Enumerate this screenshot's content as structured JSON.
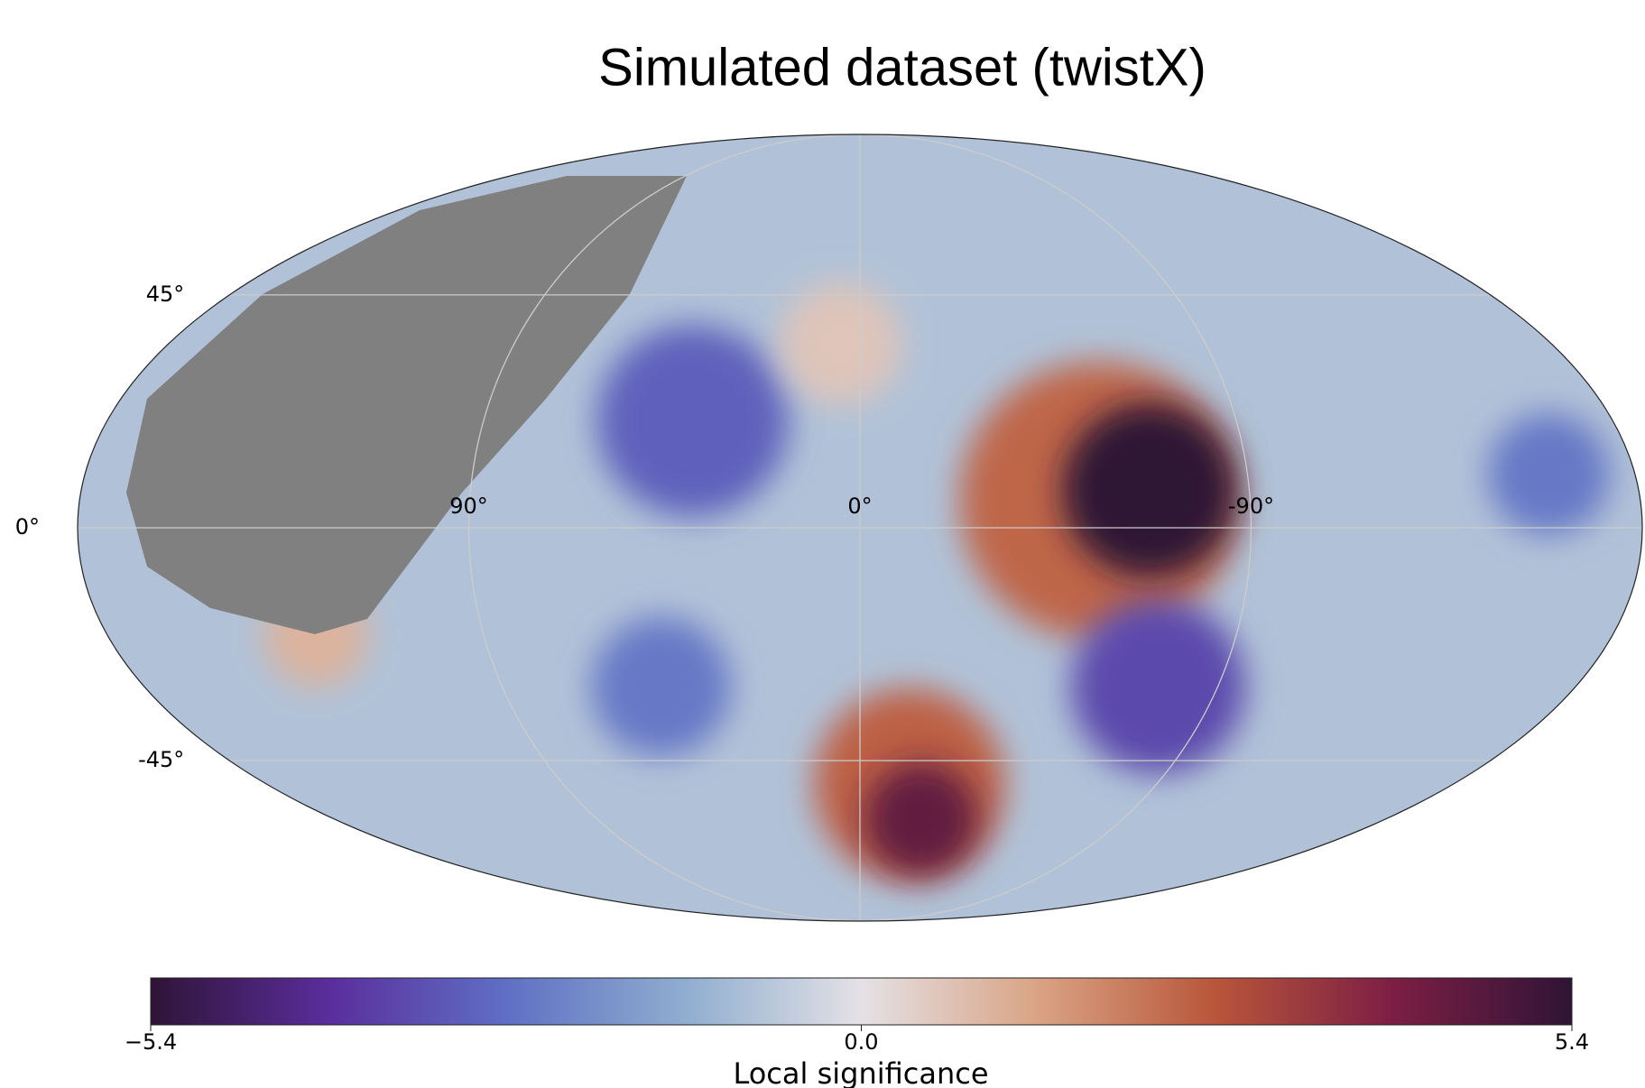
{
  "chart_data": {
    "type": "skymap",
    "title": "Simulated dataset (twistX)",
    "projection": "mollweide",
    "lon_direction": "east-left",
    "xticks": [
      {
        "value": 90,
        "label": "90°"
      },
      {
        "value": 0,
        "label": "0°"
      },
      {
        "value": -90,
        "label": "-90°"
      }
    ],
    "yticks": [
      {
        "value": 45,
        "label": "45°"
      },
      {
        "value": 0,
        "label": "0°"
      },
      {
        "value": -45,
        "label": "-45°"
      }
    ],
    "grid": true,
    "mask_color": "#808080",
    "background_value": -0.8,
    "blobs": [
      {
        "lon": -55,
        "lat": 5,
        "r": 32,
        "value": 2.4
      },
      {
        "lon": -67,
        "lat": 7,
        "r": 20,
        "value": 5.4
      },
      {
        "lon": -15,
        "lat": -50,
        "r": 22,
        "value": 2.5
      },
      {
        "lon": -21,
        "lat": -58,
        "r": 13,
        "value": 4.5
      },
      {
        "lon": 40,
        "lat": 20,
        "r": 22,
        "value": -3
      },
      {
        "lon": -75,
        "lat": -30,
        "r": 20,
        "value": -3.5
      },
      {
        "lon": 50,
        "lat": -30,
        "r": 16,
        "value": -2.5
      },
      {
        "lon": -160,
        "lat": 10,
        "r": 14,
        "value": -2.5
      },
      {
        "lon": 130,
        "lat": -20,
        "r": 12,
        "value": 1
      },
      {
        "lon": 5,
        "lat": 35,
        "r": 14,
        "value": 0.6
      }
    ],
    "colorbar": {
      "label": "Local significance",
      "lim": [
        -5.4,
        5.4
      ],
      "ticks": [
        {
          "value": -5.4,
          "label": "−5.4"
        },
        {
          "value": 0,
          "label": "0.0"
        },
        5.4
      ],
      "colors": [
        "#2f1436",
        "#5a2d9c",
        "#5f6fc4",
        "#8eadcf",
        "#e4e1e6",
        "#d9a383",
        "#b8553a",
        "#7c1e44",
        "#2f1436"
      ]
    }
  }
}
